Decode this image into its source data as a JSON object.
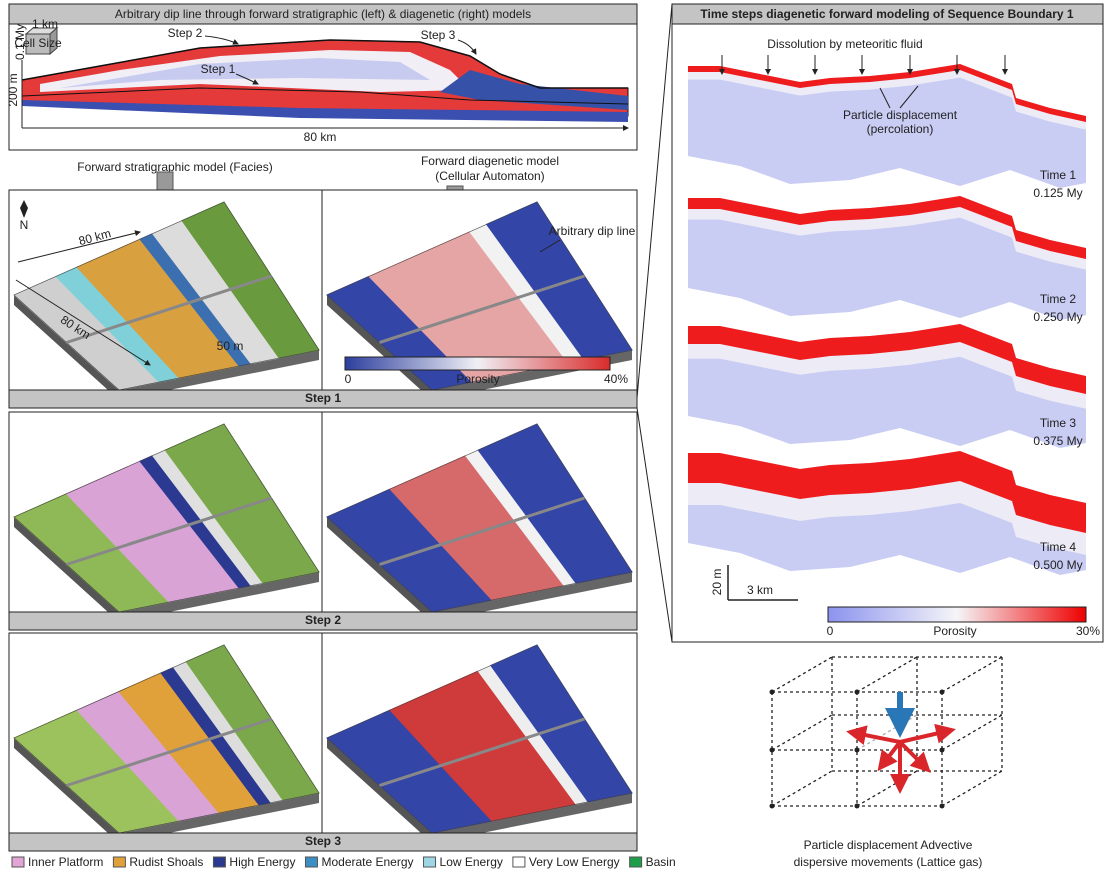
{
  "cross_section": {
    "title": "Arbitrary dip line through forward stratigraphic (left) & diagenetic (right) models",
    "labels": {
      "step_2": "Step 2",
      "step_3": "Step 3",
      "step_1": "Step 1",
      "height": "200 m",
      "length": "80 km",
      "cell_size": "Cell Size",
      "cell_time": "0.1 My",
      "cell_width": "1 km"
    }
  },
  "model_headers": {
    "stratigraphic": "Forward stratigraphic model (Facies)",
    "diagenetic": [
      "Forward diagenetic model",
      "(Cellular Automaton)"
    ]
  },
  "step1_annotations": {
    "north": "N",
    "width": "80 km",
    "length": "80 km",
    "thickness": "50 m",
    "dip_line": "Arbitrary dip line"
  },
  "porosity_bar_left": {
    "min": "0",
    "label": "Porosity",
    "max": "40%"
  },
  "steps": [
    "Step 1",
    "Step 2",
    "Step 3"
  ],
  "legend": [
    {
      "label": "Inner Platform",
      "color": "#e3a5d6"
    },
    {
      "label": "Rudist Shoals",
      "color": "#e0a03a"
    },
    {
      "label": "High Energy",
      "color": "#2b3990"
    },
    {
      "label": "Moderate Energy",
      "color": "#3b8fc4"
    },
    {
      "label": "Low Energy",
      "color": "#9fd6e6"
    },
    {
      "label": "Very Low Energy",
      "color": "#ffffff"
    },
    {
      "label": "Basin",
      "color": "#1f9e4a"
    }
  ],
  "time_panel": {
    "title": "Time steps diagenetic forward modeling of Sequence Boundary 1",
    "dissolution": "Dissolution by meteoritic fluid",
    "displacement": [
      "Particle displacement",
      "(percolation)"
    ],
    "times": [
      {
        "label": "Time 1",
        "age": "0.125 My"
      },
      {
        "label": "Time 2",
        "age": "0.250 My"
      },
      {
        "label": "Time 3",
        "age": "0.375 My"
      },
      {
        "label": "Time 4",
        "age": "0.500 My"
      }
    ],
    "scale_vertical": "20 m",
    "scale_horizontal": "3 km",
    "porosity_bar": {
      "min": "0",
      "label": "Porosity",
      "max": "30%"
    }
  },
  "lattice": {
    "caption": [
      "Particle displacement Advective",
      "dispersive movements (Lattice gas)"
    ]
  }
}
